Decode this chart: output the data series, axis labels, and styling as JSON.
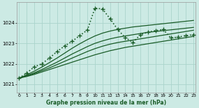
{
  "xlabel": "Graphe pression niveau de la mer (hPa)",
  "background_color": "#cceae4",
  "grid_color": "#aad4cc",
  "line_color": "#1a5c28",
  "ylim": [
    1020.6,
    1025.0
  ],
  "yticks": [
    1021,
    1022,
    1023,
    1024
  ],
  "xticks": [
    0,
    1,
    2,
    3,
    4,
    5,
    6,
    7,
    8,
    9,
    10,
    11,
    12,
    13,
    14,
    15,
    16,
    17,
    18,
    19,
    20,
    21,
    22,
    23
  ],
  "series": [
    {
      "x": [
        0,
        1,
        2,
        3,
        4,
        5,
        6,
        7,
        8,
        9,
        10,
        11,
        12,
        13,
        14,
        15,
        16,
        17,
        18,
        19,
        20,
        21,
        22,
        23
      ],
      "y": [
        1021.3,
        1021.38,
        1021.48,
        1021.6,
        1021.72,
        1021.84,
        1021.96,
        1022.08,
        1022.2,
        1022.32,
        1022.44,
        1022.54,
        1022.64,
        1022.72,
        1022.8,
        1022.86,
        1022.92,
        1022.98,
        1023.04,
        1023.1,
        1023.16,
        1023.22,
        1023.28,
        1023.34
      ],
      "linestyle": "solid",
      "linewidth": 0.9,
      "marker": null,
      "color": "#1a5c28"
    },
    {
      "x": [
        0,
        1,
        2,
        3,
        4,
        5,
        6,
        7,
        8,
        9,
        10,
        11,
        12,
        13,
        14,
        15,
        16,
        17,
        18,
        19,
        20,
        21,
        22,
        23
      ],
      "y": [
        1021.3,
        1021.4,
        1021.52,
        1021.66,
        1021.8,
        1021.96,
        1022.12,
        1022.28,
        1022.44,
        1022.6,
        1022.74,
        1022.86,
        1022.96,
        1023.04,
        1023.1,
        1023.16,
        1023.22,
        1023.28,
        1023.34,
        1023.4,
        1023.46,
        1023.52,
        1023.58,
        1023.64
      ],
      "linestyle": "solid",
      "linewidth": 0.9,
      "marker": null,
      "color": "#1a5c28"
    },
    {
      "x": [
        0,
        1,
        2,
        3,
        4,
        5,
        6,
        7,
        8,
        9,
        10,
        11,
        12,
        13,
        14,
        15,
        16,
        17,
        18,
        19,
        20,
        21,
        22,
        23
      ],
      "y": [
        1021.3,
        1021.42,
        1021.56,
        1021.72,
        1021.9,
        1022.08,
        1022.28,
        1022.48,
        1022.66,
        1022.84,
        1023.0,
        1023.12,
        1023.22,
        1023.3,
        1023.36,
        1023.42,
        1023.48,
        1023.54,
        1023.58,
        1023.62,
        1023.66,
        1023.7,
        1023.74,
        1023.78
      ],
      "linestyle": "solid",
      "linewidth": 0.9,
      "marker": null,
      "color": "#1a5c28"
    },
    {
      "x": [
        0,
        1,
        2,
        3,
        4,
        5,
        6,
        7,
        8,
        9,
        10,
        11,
        12,
        13,
        14,
        15,
        16,
        17,
        18,
        19,
        20,
        21,
        22,
        23
      ],
      "y": [
        1021.3,
        1021.46,
        1021.64,
        1021.84,
        1022.06,
        1022.28,
        1022.52,
        1022.76,
        1022.98,
        1023.18,
        1023.36,
        1023.5,
        1023.6,
        1023.68,
        1023.74,
        1023.8,
        1023.84,
        1023.88,
        1023.92,
        1023.96,
        1024.0,
        1024.04,
        1024.08,
        1024.12
      ],
      "linestyle": "solid",
      "linewidth": 0.9,
      "marker": null,
      "color": "#1a5c28"
    },
    {
      "x": [
        0,
        1,
        2,
        3,
        4,
        5,
        6,
        7,
        8,
        9,
        10,
        11,
        12,
        13,
        14,
        15,
        16,
        17,
        18,
        19,
        20,
        21,
        22,
        23
      ],
      "y": [
        1021.3,
        1021.55,
        1021.85,
        1022.0,
        1022.28,
        1022.6,
        1022.87,
        1023.1,
        1023.38,
        1023.65,
        1024.72,
        1024.68,
        1024.2,
        1023.68,
        1023.28,
        1023.05,
        1023.42,
        1023.55,
        1023.62,
        1023.68,
        1023.27,
        1023.3,
        1023.38,
        1023.42
      ],
      "linestyle": "dotted",
      "linewidth": 1.2,
      "marker": "+",
      "markersize": 4,
      "color": "#1a5c28"
    }
  ]
}
